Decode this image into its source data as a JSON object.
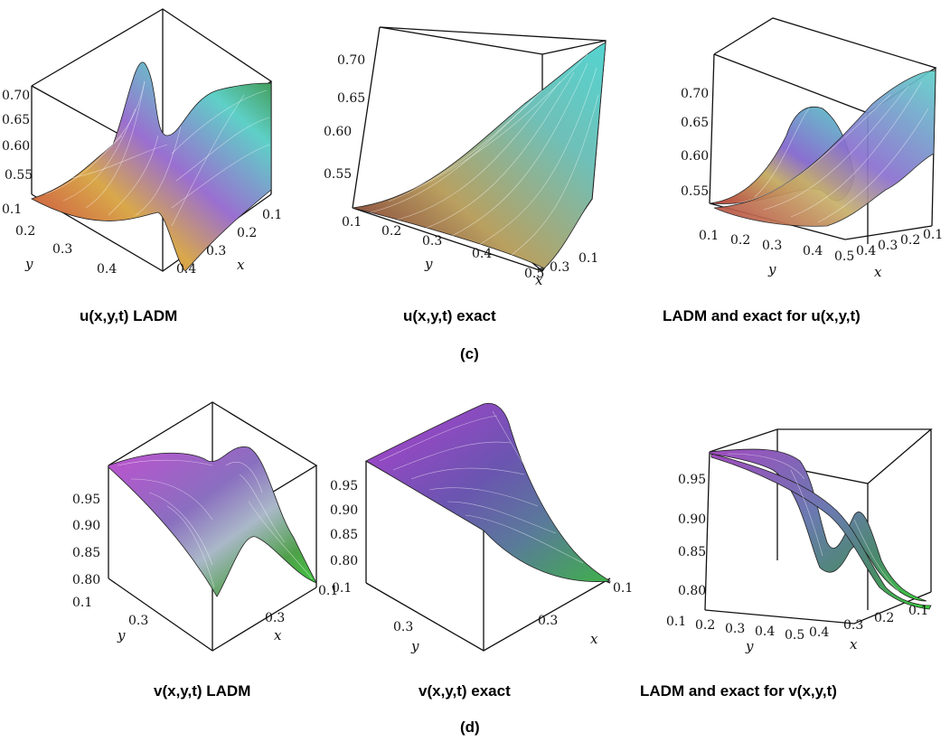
{
  "figure": {
    "group_c_label": "(c)",
    "group_d_label": "(d)"
  },
  "chart_data": [
    {
      "type": "surface",
      "caption": "u(x,y,t) LADM",
      "z_ticks": [
        "0.70",
        "0.65",
        "0.60",
        "0.55"
      ],
      "y_ticks": [
        "0.1",
        "0.2",
        "0.3",
        "0.4"
      ],
      "x_ticks": [
        "0.1",
        "0.2",
        "0.3",
        "0.4"
      ],
      "xlabel": "x",
      "ylabel": "y",
      "colors": [
        "#c8323c",
        "#d9a84a",
        "#9a6fd0",
        "#5fd0c8",
        "#3a8f3a"
      ]
    },
    {
      "type": "surface",
      "caption": "u(x,y,t) exact",
      "z_ticks": [
        "0.70",
        "0.65",
        "0.60",
        "0.55"
      ],
      "y_ticks": [
        "0.1",
        "0.2",
        "0.3",
        "0.4"
      ],
      "x_ticks": [
        "0.5",
        "0.3",
        "0.1"
      ],
      "xlabel": "x",
      "ylabel": "y",
      "colors": [
        "#8a2f35",
        "#b9a060",
        "#6fc0b8",
        "#55d4d0"
      ]
    },
    {
      "type": "surface",
      "caption": "LADM and exact for  u(x,y,t)",
      "z_ticks": [
        "0.70",
        "0.65",
        "0.60",
        "0.55"
      ],
      "y_ticks": [
        "0.1",
        "0.2",
        "0.3",
        "0.4",
        "0.5"
      ],
      "x_ticks": [
        "0.4",
        "0.3",
        "0.2",
        "0.1"
      ],
      "xlabel": "x",
      "ylabel": "y",
      "colors": [
        "#b8403f",
        "#c7b06a",
        "#8a6fd0",
        "#5fd0c8"
      ]
    },
    {
      "type": "surface",
      "caption": "v(x,y,t) LADM",
      "z_ticks": [
        "0.95",
        "0.90",
        "0.85",
        "0.80"
      ],
      "y_ticks": [
        "0.1",
        "0.3"
      ],
      "x_ticks": [
        "0.3",
        "0.1"
      ],
      "xlabel": "x",
      "ylabel": "y",
      "colors": [
        "#c050d0",
        "#8a6fc0",
        "#aab8c8",
        "#4fa04a",
        "#3ad03a"
      ]
    },
    {
      "type": "surface",
      "caption": "v(x,y,t) exact",
      "z_ticks": [
        "0.95",
        "0.90",
        "0.85",
        "0.80"
      ],
      "y_ticks": [
        "0.1",
        "0.3"
      ],
      "x_ticks": [
        "0.3",
        "0.1"
      ],
      "xlabel": "x",
      "ylabel": "y",
      "colors": [
        "#b040d0",
        "#6a55b0",
        "#5a7a9a",
        "#3fb04a"
      ]
    },
    {
      "type": "surface",
      "caption": "LADM and exact for  v(x,y,t)",
      "z_ticks": [
        "0.95",
        "0.90",
        "0.85",
        "0.80"
      ],
      "y_ticks": [
        "0.1",
        "0.2",
        "0.3",
        "0.4",
        "0.5"
      ],
      "x_ticks": [
        "0.4",
        "0.3",
        "0.2",
        "0.1"
      ],
      "xlabel": "x",
      "ylabel": "y",
      "colors": [
        "#a04cc0",
        "#6a7ab0",
        "#4a8a6a",
        "#3ad03a"
      ]
    }
  ]
}
